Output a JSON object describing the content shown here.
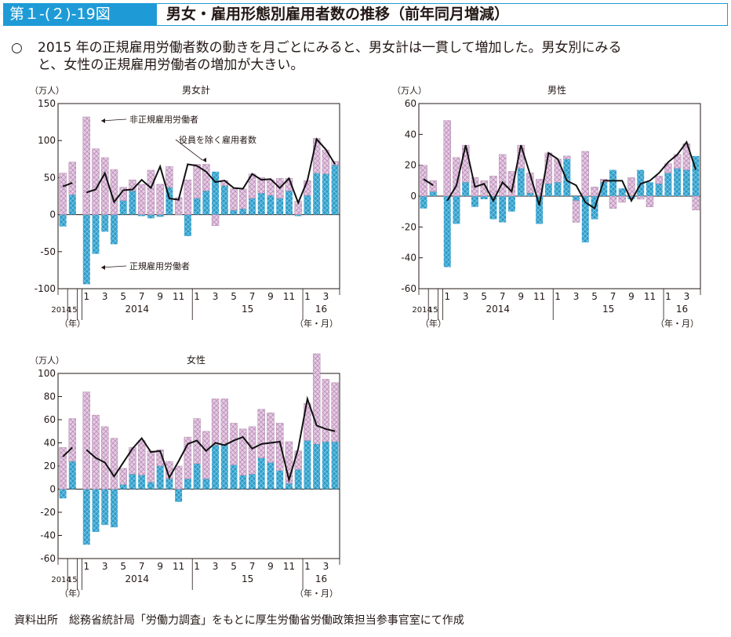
{
  "header": {
    "figure_id": "第１-(２)-19図",
    "title": "男女・雇用形態別雇用者数の推移（前年同月増減）"
  },
  "summary": {
    "bullet": "○",
    "line1": "2015 年の正規雇用労働者数の動きを月ごとにみると、男女計は一貫して増加した。男女別にみる",
    "line2": "と、女性の正規雇用労働者の増加が大きい。"
  },
  "source": "資料出所　総務省統計局「労働力調査」をもとに厚生労働省労働政策担当参事官室にて作成",
  "colors": {
    "regular": "#2e9cc8",
    "nonregular": "#e7cbe5",
    "line": "#111111",
    "axis": "#231815"
  },
  "chart_data": [
    {
      "type": "bar",
      "title": "男女計",
      "unit": "（万人）",
      "ylim": [
        -100,
        150
      ],
      "yticks": [
        -100,
        -50,
        0,
        50,
        100,
        150
      ],
      "annual_labels": [
        "2014",
        "15"
      ],
      "month_ticks": [
        "1",
        "3",
        "5",
        "7",
        "9",
        "11",
        "1",
        "3",
        "5",
        "7",
        "9",
        "11",
        "1",
        "3"
      ],
      "year_groups": [
        "2014",
        "15",
        "16"
      ],
      "unit_left": "（年）",
      "unit_right": "（年・月）",
      "annotations": [
        "非正規雇用労働者",
        "役員を除く雇用者数",
        "正規雇用労働者"
      ],
      "series": [
        {
          "name": "正規雇用労働者",
          "annual": [
            -16,
            27
          ],
          "monthly": [
            -94,
            -53,
            -23,
            -40,
            19,
            32,
            -2,
            -5,
            -3,
            37,
            0,
            -29,
            22,
            32,
            58,
            39,
            6,
            8,
            22,
            29,
            26,
            22,
            32,
            -2,
            26,
            56,
            55,
            67
          ]
        },
        {
          "name": "非正規雇用労働者",
          "annual": [
            56,
            44
          ],
          "monthly": [
            132,
            89,
            77,
            61,
            18,
            15,
            41,
            60,
            41,
            28,
            23,
            47,
            46,
            36,
            -15,
            7,
            29,
            27,
            33,
            21,
            21,
            27,
            17,
            18,
            20,
            47,
            32,
            5
          ]
        },
        {
          "name": "役員を除く雇用者数",
          "annual": [
            38,
            43
          ],
          "monthly": [
            30,
            34,
            56,
            17,
            33,
            34,
            47,
            36,
            65,
            22,
            20,
            68,
            66,
            58,
            44,
            46,
            36,
            35,
            55,
            47,
            48,
            36,
            49,
            16,
            46,
            102,
            88,
            68
          ]
        }
      ]
    },
    {
      "type": "bar",
      "title": "男性",
      "unit": "（万人）",
      "ylim": [
        -60,
        60
      ],
      "yticks": [
        -60,
        -40,
        -20,
        0,
        20,
        40,
        60
      ],
      "annual_labels": [
        "2014",
        "15"
      ],
      "month_ticks": [
        "1",
        "3",
        "5",
        "7",
        "9",
        "11",
        "1",
        "3",
        "5",
        "7",
        "9",
        "11",
        "1",
        "3"
      ],
      "year_groups": [
        "2014",
        "15",
        "16"
      ],
      "unit_left": "（年）",
      "unit_right": "（年・月）",
      "series": [
        {
          "name": "正規雇用労働者",
          "annual": [
            -8,
            3
          ],
          "monthly": [
            -46,
            -18,
            9,
            -7,
            -2,
            -15,
            -17,
            -10,
            18,
            2,
            -18,
            8,
            9,
            24,
            -3,
            -30,
            -15,
            9,
            17,
            5,
            -2,
            17,
            9,
            8,
            15,
            18,
            17,
            26
          ]
        },
        {
          "name": "非正規雇用労働者",
          "annual": [
            20,
            7
          ],
          "monthly": [
            49,
            25,
            24,
            12,
            10,
            13,
            27,
            16,
            15,
            13,
            11,
            20,
            15,
            2,
            -14,
            29,
            6,
            2,
            -8,
            -4,
            12,
            -2,
            -7,
            5,
            6,
            9,
            17,
            -9
          ]
        },
        {
          "name": "役員を除く雇用者数",
          "annual": [
            11,
            7
          ],
          "monthly": [
            -3,
            7,
            33,
            6,
            8,
            -3,
            9,
            3,
            33,
            14,
            -6,
            28,
            24,
            10,
            7,
            -4,
            -8,
            10,
            10,
            10,
            -3,
            8,
            10,
            15,
            22,
            27,
            35,
            17
          ]
        }
      ]
    },
    {
      "type": "bar",
      "title": "女性",
      "unit": "（万人）",
      "ylim": [
        -60,
        100
      ],
      "yticks": [
        -60,
        -40,
        -20,
        0,
        20,
        40,
        60,
        80,
        100
      ],
      "annual_labels": [
        "2014",
        "15"
      ],
      "month_ticks": [
        "1",
        "3",
        "5",
        "7",
        "9",
        "11",
        "1",
        "3",
        "5",
        "7",
        "9",
        "11",
        "1",
        "3"
      ],
      "year_groups": [
        "2014",
        "15",
        "16"
      ],
      "unit_left": "（年）",
      "unit_right": "（年・月）",
      "series": [
        {
          "name": "正規雇用労働者",
          "annual": [
            -8,
            24
          ],
          "monthly": [
            -48,
            -37,
            -31,
            -33,
            4,
            13,
            12,
            6,
            20,
            9,
            -11,
            9,
            22,
            9,
            38,
            38,
            21,
            12,
            13,
            27,
            23,
            16,
            5,
            17,
            42,
            39,
            41,
            41
          ]
        },
        {
          "name": "非正規雇用労働者",
          "annual": [
            36,
            37
          ],
          "monthly": [
            84,
            64,
            54,
            44,
            14,
            23,
            30,
            27,
            14,
            15,
            20,
            36,
            39,
            41,
            40,
            40,
            36,
            40,
            41,
            42,
            43,
            41,
            36,
            16,
            32,
            78,
            54,
            51
          ]
        },
        {
          "name": "役員を除く雇用者数",
          "annual": [
            28,
            36
          ],
          "monthly": [
            34,
            27,
            23,
            11,
            23,
            35,
            44,
            32,
            33,
            10,
            24,
            39,
            42,
            33,
            40,
            38,
            42,
            45,
            35,
            39,
            40,
            41,
            8,
            35,
            78,
            55,
            52,
            50
          ]
        }
      ]
    }
  ]
}
